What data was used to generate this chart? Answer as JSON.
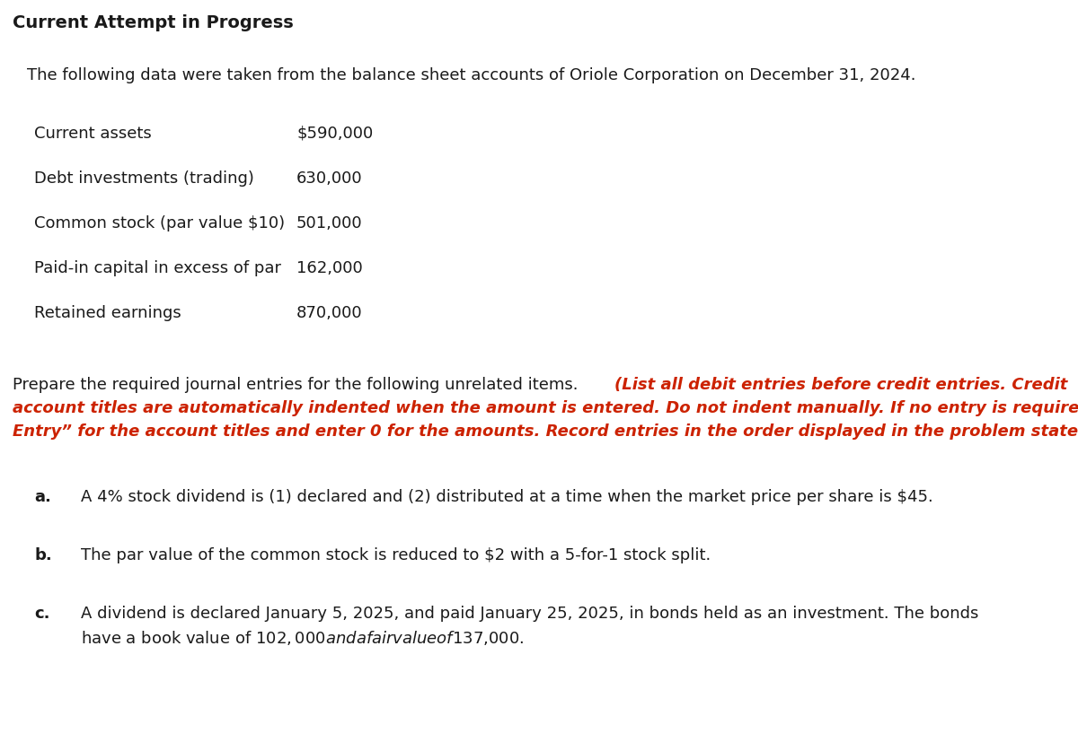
{
  "title": "Current Attempt in Progress",
  "bg_color": "#ffffff",
  "header_bg": "#f7f7f7",
  "border_color": "#cccccc",
  "intro_text": "The following data were taken from the balance sheet accounts of Oriole Corporation on December 31, 2024.",
  "table_items": [
    {
      "label": "Current assets",
      "value": "$590,000"
    },
    {
      "label": "Debt investments (trading)",
      "value": "630,000"
    },
    {
      "label": "Common stock (par value $10)",
      "value": "501,000"
    },
    {
      "label": "Paid-in capital in excess of par",
      "value": "162,000"
    },
    {
      "label": "Retained earnings",
      "value": "870,000"
    }
  ],
  "instr_normal": "Prepare the required journal entries for the following unrelated items. ",
  "instr_red_line1": "(List all debit entries before credit entries. Credit",
  "instr_red_line2": "account titles are automatically indented when the amount is entered. Do not indent manually. If no entry is required, select “No",
  "instr_red_line3": "Entry” for the account titles and enter 0 for the amounts. Record entries in the order displayed in the problem statement.)",
  "items": [
    {
      "label": "a.",
      "text_line1": "A 4% stock dividend is (1) declared and (2) distributed at a time when the market price per share is $45.",
      "text_line2": ""
    },
    {
      "label": "b.",
      "text_line1": "The par value of the common stock is reduced to $2 with a 5-for-1 stock split.",
      "text_line2": ""
    },
    {
      "label": "c.",
      "text_line1": "A dividend is declared January 5, 2025, and paid January 25, 2025, in bonds held as an investment. The bonds",
      "text_line2": "have a book value of $102,000 and a fair value of $137,000."
    }
  ],
  "normal_color": "#1a1a1a",
  "red_color": "#cc2200",
  "title_color": "#1a1a1a",
  "fs_title": 14,
  "fs_body": 13,
  "fs_table": 13
}
